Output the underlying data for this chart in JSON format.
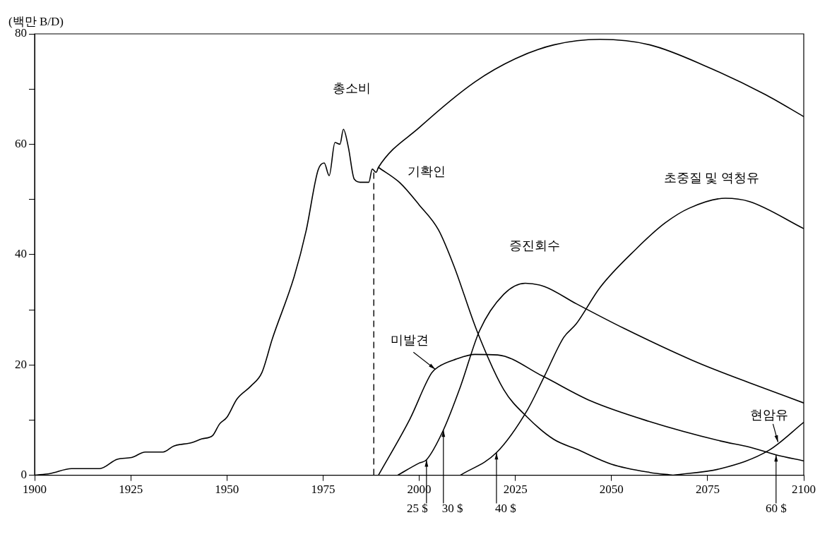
{
  "chart_data": {
    "type": "line",
    "ylabel": "(백만 B/D)",
    "xlim": [
      1900,
      2100
    ],
    "ylim": [
      0,
      80
    ],
    "xticks": [
      1900,
      1925,
      1950,
      1975,
      2000,
      2025,
      2050,
      2075,
      2100
    ],
    "yticks": [
      0,
      {
        "value": 10,
        "label": null
      },
      20,
      {
        "value": 30,
        "label": null
      },
      40,
      {
        "value": 50,
        "label": null
      },
      60,
      {
        "value": 70,
        "label": null
      },
      80
    ],
    "marker": "none",
    "line_style": "solid",
    "ref_lines": [
      {
        "axis": "x",
        "value": 1988.2,
        "line_style": "dashed",
        "color": "#000000"
      }
    ],
    "annotations": [
      {
        "text": "25 $",
        "x": 2001.9,
        "y": 2.8
      },
      {
        "text": "30 $",
        "x": 2006.3,
        "y": 8.2
      },
      {
        "text": "40 $",
        "x": 2020.1,
        "y": 4.1
      },
      {
        "text": "60 $",
        "x": 2092.8,
        "y": 3.7
      }
    ],
    "series": [
      {
        "name": "총소비",
        "color": "#000000",
        "x": [
          1900,
          1904,
          1909.6,
          1916.9,
          1921.5,
          1925.2,
          1928.8,
          1933.4,
          1936.2,
          1940.8,
          1943.5,
          1946.3,
          1948.1,
          1950,
          1952.6,
          1956.3,
          1959.1,
          1961.8,
          1967.5,
          1970.6,
          1973.7,
          1975.3,
          1976.6,
          1978.1,
          1979.4,
          1980.3,
          1981.6,
          1983.1,
          1985,
          1986.9,
          1987.8,
          1988.8,
          1989.4,
          2000,
          2014.5,
          2025,
          2035,
          2047,
          2060,
          2075,
          2090,
          2100
        ],
        "values": [
          0,
          0.3,
          1.2,
          1.2,
          2.9,
          3.2,
          4.2,
          4.2,
          5.3,
          5.9,
          6.6,
          7.2,
          9.3,
          10.5,
          13.8,
          16.2,
          18.6,
          24.7,
          36,
          44.3,
          55.3,
          56.6,
          54.3,
          60.3,
          60,
          62.7,
          59.4,
          53.7,
          53.1,
          53.1,
          55.5,
          54.9,
          55.8,
          63,
          71.3,
          75.5,
          78,
          79,
          78,
          74,
          69,
          65
        ]
      },
      {
        "name": "기확인",
        "color": "#000000",
        "x": [
          1989.4,
          1995,
          2000,
          2005,
          2009,
          2015,
          2022,
          2028,
          2035,
          2041,
          2050,
          2060,
          2066
        ],
        "values": [
          55.8,
          53,
          49,
          44.5,
          38,
          26.2,
          15.5,
          10.6,
          6.5,
          4.7,
          2,
          0.5,
          0
        ]
      },
      {
        "name": "미발견",
        "color": "#000000",
        "x": [
          1989.4,
          1997.6,
          2003.2,
          2005.1,
          2009.4,
          2014.5,
          2020.4,
          2032,
          2044.5,
          2059.6,
          2078.4,
          2085.9,
          2092.8,
          2100
        ],
        "values": [
          0,
          10.2,
          18.5,
          19.7,
          21,
          21.9,
          21.8,
          18,
          13.5,
          9.8,
          6.2,
          5.1,
          3.7,
          2.6
        ]
      },
      {
        "name": "증진회수",
        "color": "#000000",
        "x": [
          1994.4,
          2000,
          2001.9,
          2006.3,
          2010.7,
          2015.7,
          2022,
          2027.6,
          2032.6,
          2040.8,
          2053.3,
          2072.1,
          2087.2,
          2100
        ],
        "values": [
          0,
          2.2,
          2.8,
          8.2,
          16,
          26.2,
          32.8,
          34.8,
          34.2,
          31.1,
          26.6,
          20.5,
          16.4,
          13.1
        ]
      },
      {
        "name": "초중질 및 역청유",
        "color": "#000000",
        "x": [
          2010.7,
          2020.1,
          2028.2,
          2032.6,
          2037.6,
          2040.8,
          2047,
          2056.4,
          2063.9,
          2070.2,
          2079.6,
          2085.9,
          2100
        ],
        "values": [
          0,
          4.1,
          11.9,
          18,
          25,
          27.4,
          34,
          41,
          45.7,
          48.4,
          50.2,
          49.6,
          44.7
        ]
      },
      {
        "name": "현암유",
        "color": "#000000",
        "x": [
          2066,
          2078.4,
          2090.9,
          2100
        ],
        "values": [
          0,
          1.2,
          4.5,
          9.6
        ]
      }
    ]
  }
}
